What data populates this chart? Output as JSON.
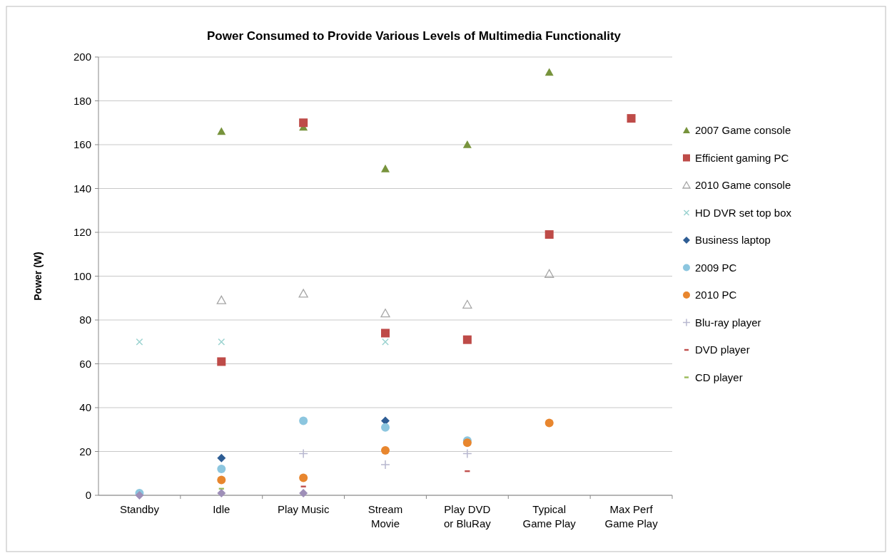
{
  "chart_data": {
    "type": "scatter",
    "title": "Power Consumed to Provide Various Levels of  Multimedia Functionality",
    "ylabel": "Power (W)",
    "categories": [
      "Standby",
      "Idle",
      "Play Music",
      "Stream Movie",
      "Play DVD or BluRay",
      "Typical Game Play",
      "Max Perf Game Play"
    ],
    "ylim": [
      0,
      200
    ],
    "yticks": [
      0,
      20,
      40,
      60,
      80,
      100,
      120,
      140,
      160,
      180,
      200
    ],
    "grid": "y",
    "legend": "right",
    "series": [
      {
        "name": "2007 Game console",
        "color": "#77933c",
        "marker": "triangle",
        "values": [
          null,
          166,
          168,
          149,
          160,
          193,
          null
        ]
      },
      {
        "name": "Efficient gaming PC",
        "color": "#be4b48",
        "marker": "square",
        "values": [
          null,
          61,
          170,
          74,
          71,
          119,
          172
        ]
      },
      {
        "name": "2010 Game console",
        "color": "#a6a6a6",
        "marker": "triangle-open",
        "values": [
          null,
          89,
          92,
          83,
          87,
          101,
          null
        ]
      },
      {
        "name": "HD DVR set top box",
        "color": "#9bd3d0",
        "marker": "x",
        "values": [
          70,
          70,
          null,
          70,
          null,
          null,
          null
        ]
      },
      {
        "name": "Business laptop",
        "color": "#2e5d94",
        "marker": "diamond",
        "values": [
          null,
          17,
          null,
          34,
          null,
          null,
          null
        ]
      },
      {
        "name": "2009 PC",
        "color": "#8cc6df",
        "marker": "circle",
        "values": [
          1,
          12,
          34,
          31,
          25,
          null,
          null
        ]
      },
      {
        "name": "2010 PC",
        "color": "#e8862e",
        "marker": "circle",
        "values": [
          null,
          7,
          8,
          20.5,
          24,
          33,
          null
        ]
      },
      {
        "name": "Blu-ray player",
        "color": "#b8b8d0",
        "marker": "cross",
        "values": [
          null,
          null,
          19,
          14,
          19,
          null,
          null
        ]
      },
      {
        "name": "DVD player",
        "color": "#c0504d",
        "values": [
          null,
          null,
          4,
          null,
          11,
          null,
          null
        ]
      },
      {
        "name": "CD player",
        "color": "#9bbb59",
        "values": [
          null,
          3,
          null,
          null,
          null,
          null,
          null
        ]
      },
      {
        "color": "#9e8fb8",
        "marker": "diamond",
        "values": [
          0,
          1,
          1,
          null,
          null,
          null,
          null
        ]
      }
    ]
  }
}
